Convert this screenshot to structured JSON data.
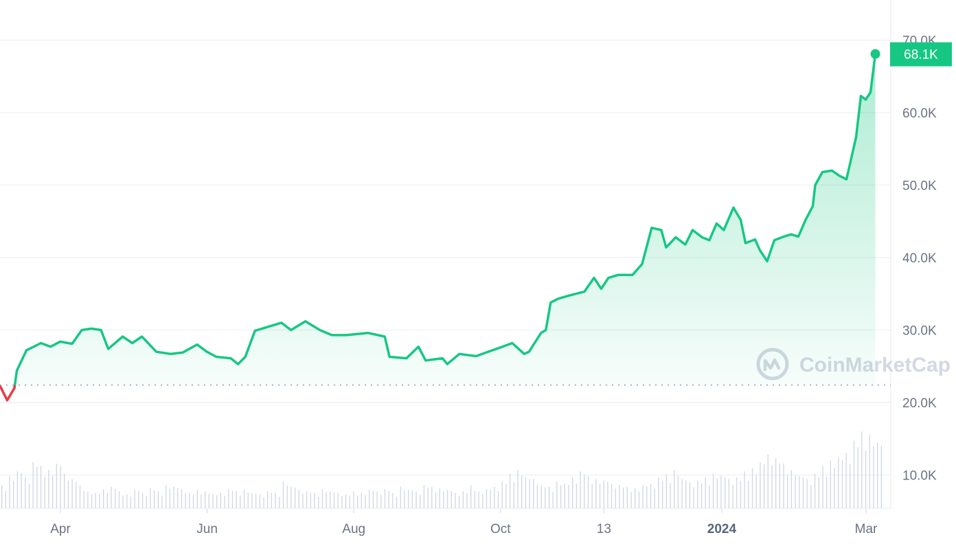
{
  "chart_data": {
    "type": "area",
    "title": "",
    "watermark": "CoinMarketCap",
    "y_unit": "USD",
    "ylim": [
      15000,
      72000
    ],
    "y_ticks": [
      "70.0K",
      "60.0K",
      "50.0K",
      "40.0K",
      "30.0K",
      "20.0K",
      "10.0K"
    ],
    "y_tick_values": [
      70000,
      60000,
      50000,
      40000,
      30000,
      20000,
      10000
    ],
    "x_ticks": [
      {
        "label": "Apr",
        "date": "2023-04-01",
        "bold": false
      },
      {
        "label": "Jun",
        "date": "2023-06-01",
        "bold": false
      },
      {
        "label": "Aug",
        "date": "2023-08-01",
        "bold": false
      },
      {
        "label": "Oct",
        "date": "2023-10-01",
        "bold": false
      },
      {
        "label": "13",
        "date": "2023-11-13",
        "bold": false
      },
      {
        "label": "2024",
        "date": "2024-01-01",
        "bold": true
      },
      {
        "label": "Mar",
        "date": "2024-03-01",
        "bold": false
      }
    ],
    "x_range": [
      "2023-03-07",
      "2024-03-05"
    ],
    "reference_price": 22400,
    "last_price_label": "68.1K",
    "grid": true,
    "colors": {
      "up": "#16c784",
      "down": "#ea3943",
      "fill_top": "#16c784",
      "grid": "#eff2f5",
      "volume": "#cfd6e4",
      "reference": "#a6b0c3"
    },
    "series": [
      {
        "dates": [
          "2023-03-07",
          "2023-03-10",
          "2023-03-13",
          "2023-03-14",
          "2023-03-18",
          "2023-03-21",
          "2023-03-24",
          "2023-03-28",
          "2023-04-01",
          "2023-04-06",
          "2023-04-10",
          "2023-04-14",
          "2023-04-18",
          "2023-04-21",
          "2023-04-27",
          "2023-05-01",
          "2023-05-05",
          "2023-05-11",
          "2023-05-17",
          "2023-05-22",
          "2023-05-28",
          "2023-06-01",
          "2023-06-05",
          "2023-06-11",
          "2023-06-14",
          "2023-06-17",
          "2023-06-21",
          "2023-06-27",
          "2023-07-02",
          "2023-07-06",
          "2023-07-12",
          "2023-07-18",
          "2023-07-23",
          "2023-07-29",
          "2023-08-07",
          "2023-08-14",
          "2023-08-16",
          "2023-08-23",
          "2023-08-28",
          "2023-08-31",
          "2023-09-07",
          "2023-09-09",
          "2023-09-14",
          "2023-09-21",
          "2023-09-26",
          "2023-10-02",
          "2023-10-06",
          "2023-10-11",
          "2023-10-13",
          "2023-10-18",
          "2023-10-20",
          "2023-10-22",
          "2023-10-25",
          "2023-10-30",
          "2023-11-05",
          "2023-11-09",
          "2023-11-12",
          "2023-11-15",
          "2023-11-19",
          "2023-11-25",
          "2023-11-29",
          "2023-12-03",
          "2023-12-07",
          "2023-12-09",
          "2023-12-13",
          "2023-12-17",
          "2023-12-20",
          "2023-12-24",
          "2023-12-27",
          "2023-12-30",
          "2024-01-02",
          "2024-01-06",
          "2024-01-09",
          "2024-01-11",
          "2024-01-15",
          "2024-01-17",
          "2024-01-20",
          "2024-01-23",
          "2024-01-27",
          "2024-01-30",
          "2024-02-02",
          "2024-02-05",
          "2024-02-08",
          "2024-02-09",
          "2024-02-12",
          "2024-02-16",
          "2024-02-19",
          "2024-02-22",
          "2024-02-26",
          "2024-02-28",
          "2024-03-01",
          "2024-03-03",
          "2024-03-05"
        ],
        "values": [
          22300,
          20300,
          22000,
          24400,
          27200,
          27700,
          28200,
          27700,
          28400,
          28100,
          30000,
          30200,
          30000,
          27400,
          29100,
          28200,
          29100,
          27000,
          26700,
          26900,
          28000,
          27000,
          26300,
          26100,
          25300,
          26300,
          29900,
          30500,
          31000,
          30000,
          31200,
          30000,
          29300,
          29300,
          29600,
          29100,
          26300,
          26100,
          27700,
          25800,
          26100,
          25300,
          26700,
          26400,
          27000,
          27700,
          28200,
          26700,
          27000,
          29600,
          30000,
          33800,
          34300,
          34800,
          35300,
          37200,
          35700,
          37200,
          37600,
          37600,
          39100,
          44100,
          43800,
          41400,
          42800,
          41800,
          43800,
          42800,
          42400,
          44700,
          43800,
          46900,
          45200,
          42000,
          42500,
          41000,
          39500,
          42400,
          42900,
          43200,
          42900,
          45200,
          47100,
          50000,
          51800,
          52000,
          51300,
          50800,
          56600,
          62300,
          61800,
          62800,
          68100
        ]
      }
    ],
    "volume_relative": [
      30,
      42,
      48,
      40,
      60,
      55,
      50,
      58,
      45,
      38,
      30,
      22,
      20,
      25,
      28,
      22,
      18,
      24,
      20,
      26,
      22,
      30,
      28,
      25,
      20,
      24,
      22,
      18,
      20,
      25,
      22,
      24,
      20,
      18,
      22,
      20,
      35,
      28,
      24,
      22,
      20,
      25,
      22,
      20,
      18,
      22,
      20,
      24,
      22,
      25,
      20,
      28,
      24,
      22,
      30,
      28,
      26,
      24,
      20,
      22,
      30,
      22,
      25,
      28,
      35,
      45,
      50,
      40,
      38,
      30,
      28,
      35,
      32,
      40,
      48,
      42,
      38,
      36,
      32,
      30,
      28,
      26,
      30,
      32,
      40,
      44,
      50,
      38,
      34,
      36,
      40,
      45,
      42,
      38,
      40,
      48,
      52,
      60,
      70,
      65,
      58,
      50,
      42,
      38,
      45,
      55,
      62,
      66,
      72,
      88,
      100,
      95,
      85
    ]
  }
}
